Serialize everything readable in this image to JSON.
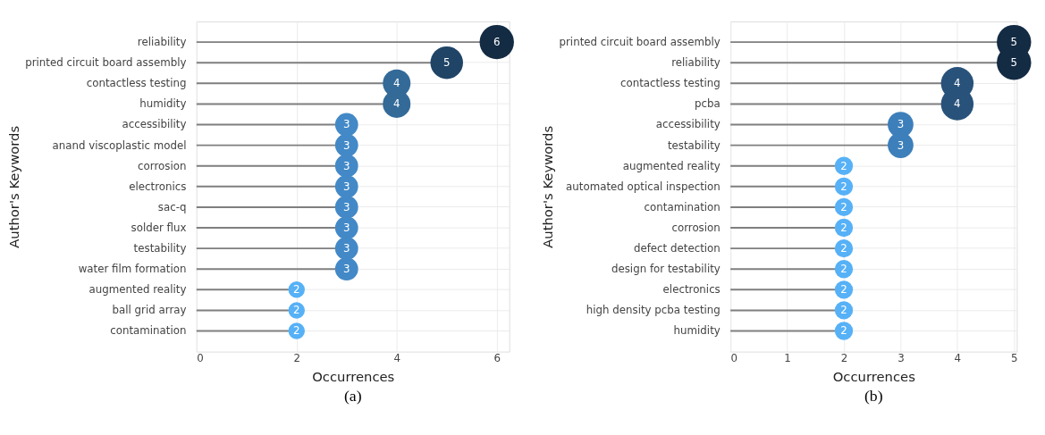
{
  "chart_data": [
    {
      "type": "lollipop",
      "xlabel": "Occurrences",
      "ylabel": "Author's Keywords",
      "categories": [
        "reliability",
        "printed circuit board assembly",
        "contactless testing",
        "humidity",
        "accessibility",
        "anand viscoplastic model",
        "corrosion",
        "electronics",
        "sac-q",
        "solder flux",
        "testability",
        "water film formation",
        "augmented reality",
        "ball grid array",
        "contamination"
      ],
      "values": [
        6,
        5,
        4,
        4,
        3,
        3,
        3,
        3,
        3,
        3,
        3,
        3,
        2,
        2,
        2
      ],
      "sizes": [
        1,
        0.9,
        0.65,
        0.65,
        0.45,
        0.45,
        0.45,
        0.45,
        0.45,
        0.45,
        0.45,
        0.45,
        0.23,
        0.23,
        0.23
      ],
      "colors": [
        "#132b43",
        "#1f4466",
        "#336a98",
        "#336a98",
        "#4389c7",
        "#4389c7",
        "#4389c7",
        "#4389c7",
        "#4389c7",
        "#4389c7",
        "#4389c7",
        "#4389c7",
        "#56b1f7",
        "#56b1f7",
        "#56b1f7"
      ],
      "orientation": "horizontal",
      "xlim": [
        0,
        6.25
      ],
      "xticks": [
        0,
        2,
        4,
        6
      ],
      "grid": true,
      "data_labels": true,
      "annotations": [
        "(a)"
      ]
    },
    {
      "type": "lollipop",
      "xlabel": "Occurrences",
      "ylabel": "Author's Keywords",
      "categories": [
        "printed circuit board assembly",
        "reliability",
        "contactless testing",
        "pcba",
        "accessibility",
        "testability",
        "augmented reality",
        "automated optical inspection",
        "contamination",
        "corrosion",
        "defect detection",
        "design for testability",
        "electronics",
        "high density pcba testing",
        "humidity"
      ],
      "values": [
        5,
        5,
        4,
        4,
        3,
        3,
        2,
        2,
        2,
        2,
        2,
        2,
        2,
        2,
        2
      ],
      "sizes": [
        1,
        1,
        0.9,
        0.9,
        0.56,
        0.56,
        0.28,
        0.28,
        0.28,
        0.28,
        0.28,
        0.28,
        0.28,
        0.28,
        0.28
      ],
      "colors": [
        "#132b43",
        "#132b43",
        "#28527a",
        "#28527a",
        "#3d7fba",
        "#3d7fba",
        "#56b1f7",
        "#56b1f7",
        "#56b1f7",
        "#56b1f7",
        "#56b1f7",
        "#56b1f7",
        "#56b1f7",
        "#56b1f7",
        "#56b1f7"
      ],
      "orientation": "horizontal",
      "xlim": [
        0,
        5.05
      ],
      "xticks": [
        0,
        1,
        2,
        3,
        4,
        5
      ],
      "grid": true,
      "data_labels": true,
      "annotations": [
        "(b)"
      ]
    }
  ]
}
